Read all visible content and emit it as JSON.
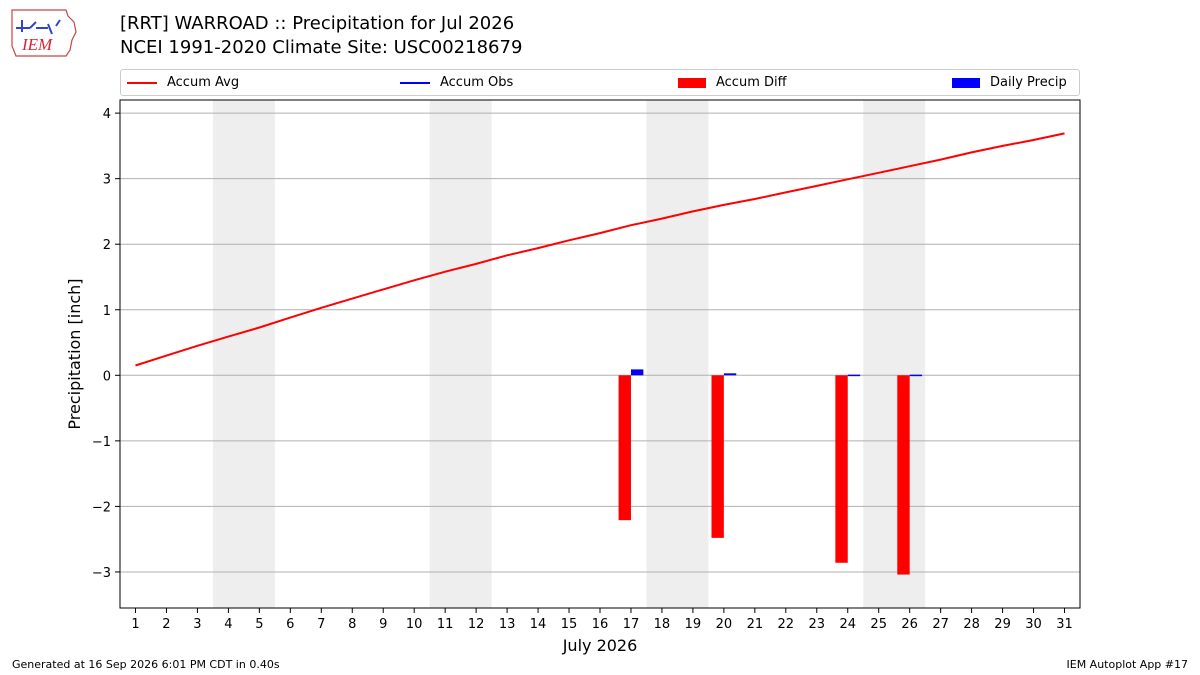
{
  "header": {
    "logo_text": "IEM",
    "title": "[RRT] WARROAD :: Precipitation for Jul 2026",
    "subtitle": "NCEI 1991-2020 Climate Site: USC00218679"
  },
  "legend": [
    {
      "label": "Accum Avg",
      "kind": "line",
      "color": "#ff0000"
    },
    {
      "label": "Accum Obs",
      "kind": "line",
      "color": "#0000ff"
    },
    {
      "label": "Accum Diff",
      "kind": "box",
      "color": "#ff0000"
    },
    {
      "label": "Daily Precip",
      "kind": "box",
      "color": "#0000ff"
    }
  ],
  "footer": {
    "generated": "Generated at 16 Sep 2026 6:01 PM CDT in 0.40s",
    "app": "IEM Autoplot App #17"
  },
  "chart_data": {
    "type": "bar",
    "title": "[RRT] WARROAD :: Precipitation for Jul 2026",
    "subtitle": "NCEI 1991-2020 Climate Site: USC00218679",
    "xlabel": "July 2026",
    "ylabel": "Precipitation [inch]",
    "ylim": [
      -3.55,
      4.2
    ],
    "yticks": [
      -3,
      -2,
      -1,
      0,
      1,
      2,
      3,
      4
    ],
    "ytick_labels": [
      "−3",
      "−2",
      "−1",
      "0",
      "1",
      "2",
      "3",
      "4"
    ],
    "x": [
      1,
      2,
      3,
      4,
      5,
      6,
      7,
      8,
      9,
      10,
      11,
      12,
      13,
      14,
      15,
      16,
      17,
      18,
      19,
      20,
      21,
      22,
      23,
      24,
      25,
      26,
      27,
      28,
      29,
      30,
      31
    ],
    "xtick_labels": [
      "1",
      "2",
      "3",
      "4",
      "5",
      "6",
      "7",
      "8",
      "9",
      "10",
      "11",
      "12",
      "13",
      "14",
      "15",
      "16",
      "17",
      "18",
      "19",
      "20",
      "21",
      "22",
      "23",
      "24",
      "25",
      "26",
      "27",
      "28",
      "29",
      "30",
      "31"
    ],
    "shaded_days": [
      [
        4,
        5
      ],
      [
        11,
        12
      ],
      [
        18,
        19
      ],
      [
        25,
        26
      ]
    ],
    "grid": "horizontal",
    "legend_position": "top",
    "series": [
      {
        "name": "Accum Avg",
        "kind": "line",
        "color": "#ff0000",
        "values": [
          0.15,
          0.3,
          0.45,
          0.59,
          0.73,
          0.88,
          1.03,
          1.17,
          1.31,
          1.45,
          1.58,
          1.7,
          1.83,
          1.94,
          2.06,
          2.17,
          2.29,
          2.39,
          2.5,
          2.6,
          2.69,
          2.79,
          2.89,
          2.99,
          3.09,
          3.19,
          3.29,
          3.4,
          3.5,
          3.59,
          3.69
        ]
      },
      {
        "name": "Accum Diff",
        "kind": "bar",
        "color": "#ff0000",
        "points": [
          {
            "x": 17,
            "y": -2.21
          },
          {
            "x": 20,
            "y": -2.48
          },
          {
            "x": 24,
            "y": -2.86
          },
          {
            "x": 26,
            "y": -3.04
          }
        ]
      },
      {
        "name": "Daily Precip",
        "kind": "bar",
        "color": "#0000ff",
        "points": [
          {
            "x": 17,
            "y": 0.09
          },
          {
            "x": 20,
            "y": 0.03
          },
          {
            "x": 24,
            "y": 0.01
          },
          {
            "x": 26,
            "y": 0.01
          }
        ]
      }
    ]
  }
}
